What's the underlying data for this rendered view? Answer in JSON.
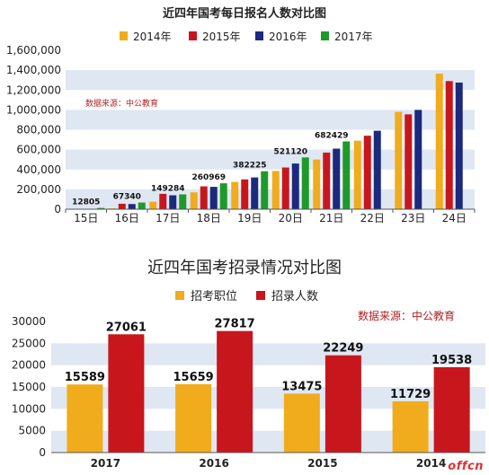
{
  "colors": {
    "y2014": "#f0ac1c",
    "y2015": "#c8161d",
    "y2016": "#1b2a7d",
    "y2017": "#1f9a2a",
    "band": "#dfe7f3",
    "source_red": "#b22222"
  },
  "watermark": "offcn",
  "chart_data": [
    {
      "type": "bar",
      "title": "近四年国考每日报名人数对比图",
      "source_note": "数据来源：中公教育",
      "categories": [
        "15日",
        "16日",
        "17日",
        "18日",
        "19日",
        "20日",
        "21日",
        "22日",
        "23日",
        "24日"
      ],
      "series": [
        {
          "name": "2014年",
          "values": [
            0,
            8000,
            76000,
            170000,
            275000,
            385000,
            500000,
            690000,
            980000,
            1365000
          ]
        },
        {
          "name": "2015年",
          "values": [
            0,
            55000,
            155000,
            230000,
            300000,
            420000,
            570000,
            740000,
            955000,
            1290000
          ]
        },
        {
          "name": "2016年",
          "values": [
            0,
            52000,
            140000,
            225000,
            320000,
            460000,
            610000,
            790000,
            1000000,
            1275000
          ]
        },
        {
          "name": "2017年",
          "values": [
            12805,
            67340,
            149284,
            260969,
            382225,
            521120,
            682429,
            null,
            null,
            null
          ]
        }
      ],
      "data_labels": [
        "12805",
        "67340",
        "149284",
        "260969",
        "382225",
        "521120",
        "682429"
      ],
      "yticks": [
        "0",
        "200,000",
        "400,000",
        "600,000",
        "800,000",
        "1,000,000",
        "1,200,000",
        "1,400,000",
        "1,600,000"
      ],
      "ylim": [
        0,
        1600000
      ]
    },
    {
      "type": "bar",
      "title": "近四年国考招录情况对比图",
      "source_note": "数据来源：中公教育",
      "categories": [
        "2017",
        "2016",
        "2015",
        "2014"
      ],
      "series": [
        {
          "name": "招考职位",
          "values": [
            15589,
            15659,
            13475,
            11729
          ]
        },
        {
          "name": "招录人数",
          "values": [
            27061,
            27817,
            22249,
            19538
          ]
        }
      ],
      "yticks": [
        "0",
        "5000",
        "10000",
        "15000",
        "20000",
        "25000",
        "30000"
      ],
      "ylim": [
        0,
        30000
      ]
    }
  ]
}
